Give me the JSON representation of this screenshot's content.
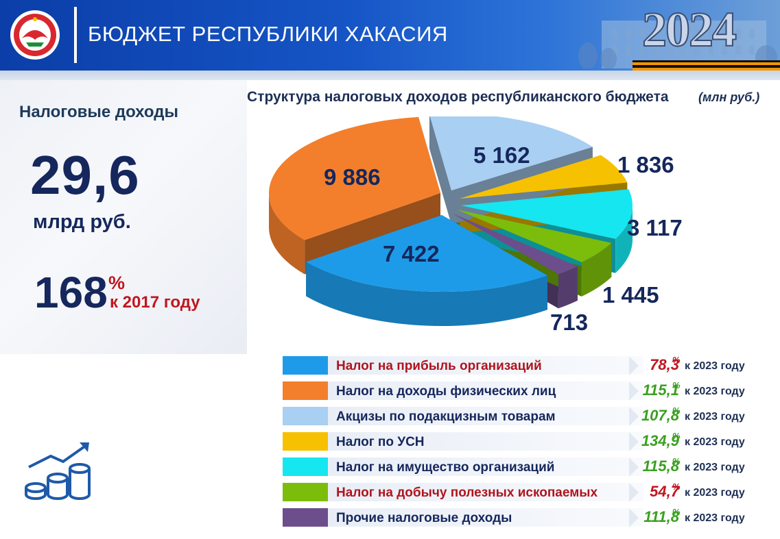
{
  "header": {
    "title": "БЮДЖЕТ РЕСПУБЛИКИ ХАКАСИЯ",
    "year": "2024"
  },
  "left": {
    "title": "Налоговые доходы",
    "total_value": "29,6",
    "total_unit": "млрд руб.",
    "growth_value": "168",
    "growth_sign": "%",
    "growth_note": "к 2017 году"
  },
  "chart_data": {
    "type": "pie",
    "title": "Структура налоговых доходов республиканского бюджета",
    "unit": "(млн руб.)",
    "categories": [
      "Налог на прибыль организаций",
      "Налог на доходы физических лиц",
      "Акцизы по подакцизным товарам",
      "Налог по УСН",
      "Налог на имущество организаций",
      "Налог на добычу полезных ископаемых",
      "Прочие налоговые доходы"
    ],
    "values": [
      7422,
      9886,
      5162,
      1836,
      3117,
      1445,
      713
    ],
    "value_labels": [
      "7 422",
      "9 886",
      "5 162",
      "1 836",
      "3 117",
      "1 445",
      "713"
    ],
    "colors": [
      "#1e9be8",
      "#f37f2c",
      "#a9cff2",
      "#f6c100",
      "#16e6f0",
      "#7cbd0c",
      "#6c4e8c"
    ],
    "change_vs_2023": [
      "78,3",
      "115,1",
      "107,8",
      "134,9",
      "115,8",
      "54,7",
      "111,8"
    ],
    "change_colors": [
      "#c0161f",
      "#3aa020",
      "#3aa020",
      "#3aa020",
      "#3aa020",
      "#c0161f",
      "#3aa020"
    ],
    "change_sign": "%",
    "change_note": "к 2023 году"
  },
  "legend_label_colors": [
    "#b0141d",
    "#15275c",
    "#15275c",
    "#15275c",
    "#15275c",
    "#b0141d",
    "#15275c"
  ]
}
